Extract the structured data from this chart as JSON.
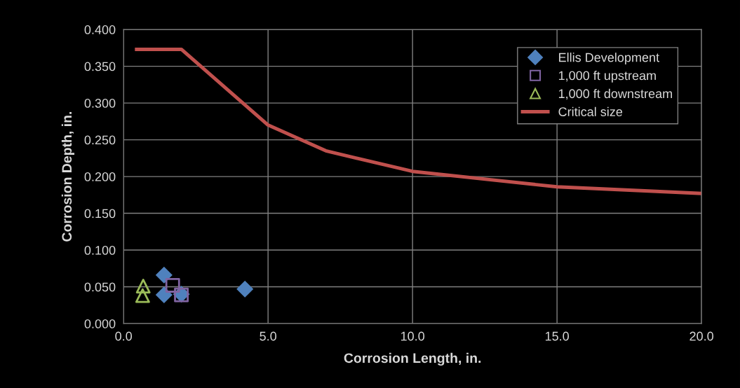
{
  "chart_data": {
    "type": "scatter",
    "xlabel": "Corrosion Length, in.",
    "ylabel": "Corrosion Depth, in.",
    "xlim": [
      0,
      20
    ],
    "xticks": [
      {
        "value": 0,
        "label": "0.0"
      },
      {
        "value": 5,
        "label": "5.0"
      },
      {
        "value": 10,
        "label": "10.0"
      },
      {
        "value": 15,
        "label": "15.0"
      },
      {
        "value": 20,
        "label": "20.0"
      }
    ],
    "ylim": [
      0,
      0.4
    ],
    "yticks": [
      {
        "value": 0,
        "label": "0.000"
      },
      {
        "value": 0.05,
        "label": "0.050"
      },
      {
        "value": 0.1,
        "label": "0.100"
      },
      {
        "value": 0.15,
        "label": "0.150"
      },
      {
        "value": 0.2,
        "label": "0.200"
      },
      {
        "value": 0.25,
        "label": "0.250"
      },
      {
        "value": 0.3,
        "label": "0.300"
      },
      {
        "value": 0.35,
        "label": "0.350"
      },
      {
        "value": 0.4,
        "label": "0.400"
      }
    ],
    "grid": true,
    "legend": "top right",
    "series": [
      {
        "name": "Ellis Development",
        "marker": "diamond",
        "color": "#4f81bd",
        "x": [
          1.4,
          1.4,
          2.0,
          4.2
        ],
        "values": [
          0.066,
          0.039,
          0.04,
          0.047
        ]
      },
      {
        "name": "1,000 ft upstream",
        "marker": "square",
        "color": "#8064a2",
        "x": [
          1.7,
          2.0
        ],
        "values": [
          0.052,
          0.039
        ]
      },
      {
        "name": "1,000 ft downstream",
        "marker": "triangle",
        "color": "#9bbb59",
        "x": [
          0.68,
          0.66
        ],
        "values": [
          0.051,
          0.038
        ]
      },
      {
        "name": "Critical size",
        "type": "line",
        "marker": "none",
        "line_style": "solid",
        "color": "#c0504d",
        "x": [
          0.45,
          2.0,
          5.0,
          7.0,
          10.0,
          15.0,
          20.0
        ],
        "values": [
          0.373,
          0.373,
          0.27,
          0.235,
          0.207,
          0.186,
          0.177
        ]
      }
    ]
  }
}
